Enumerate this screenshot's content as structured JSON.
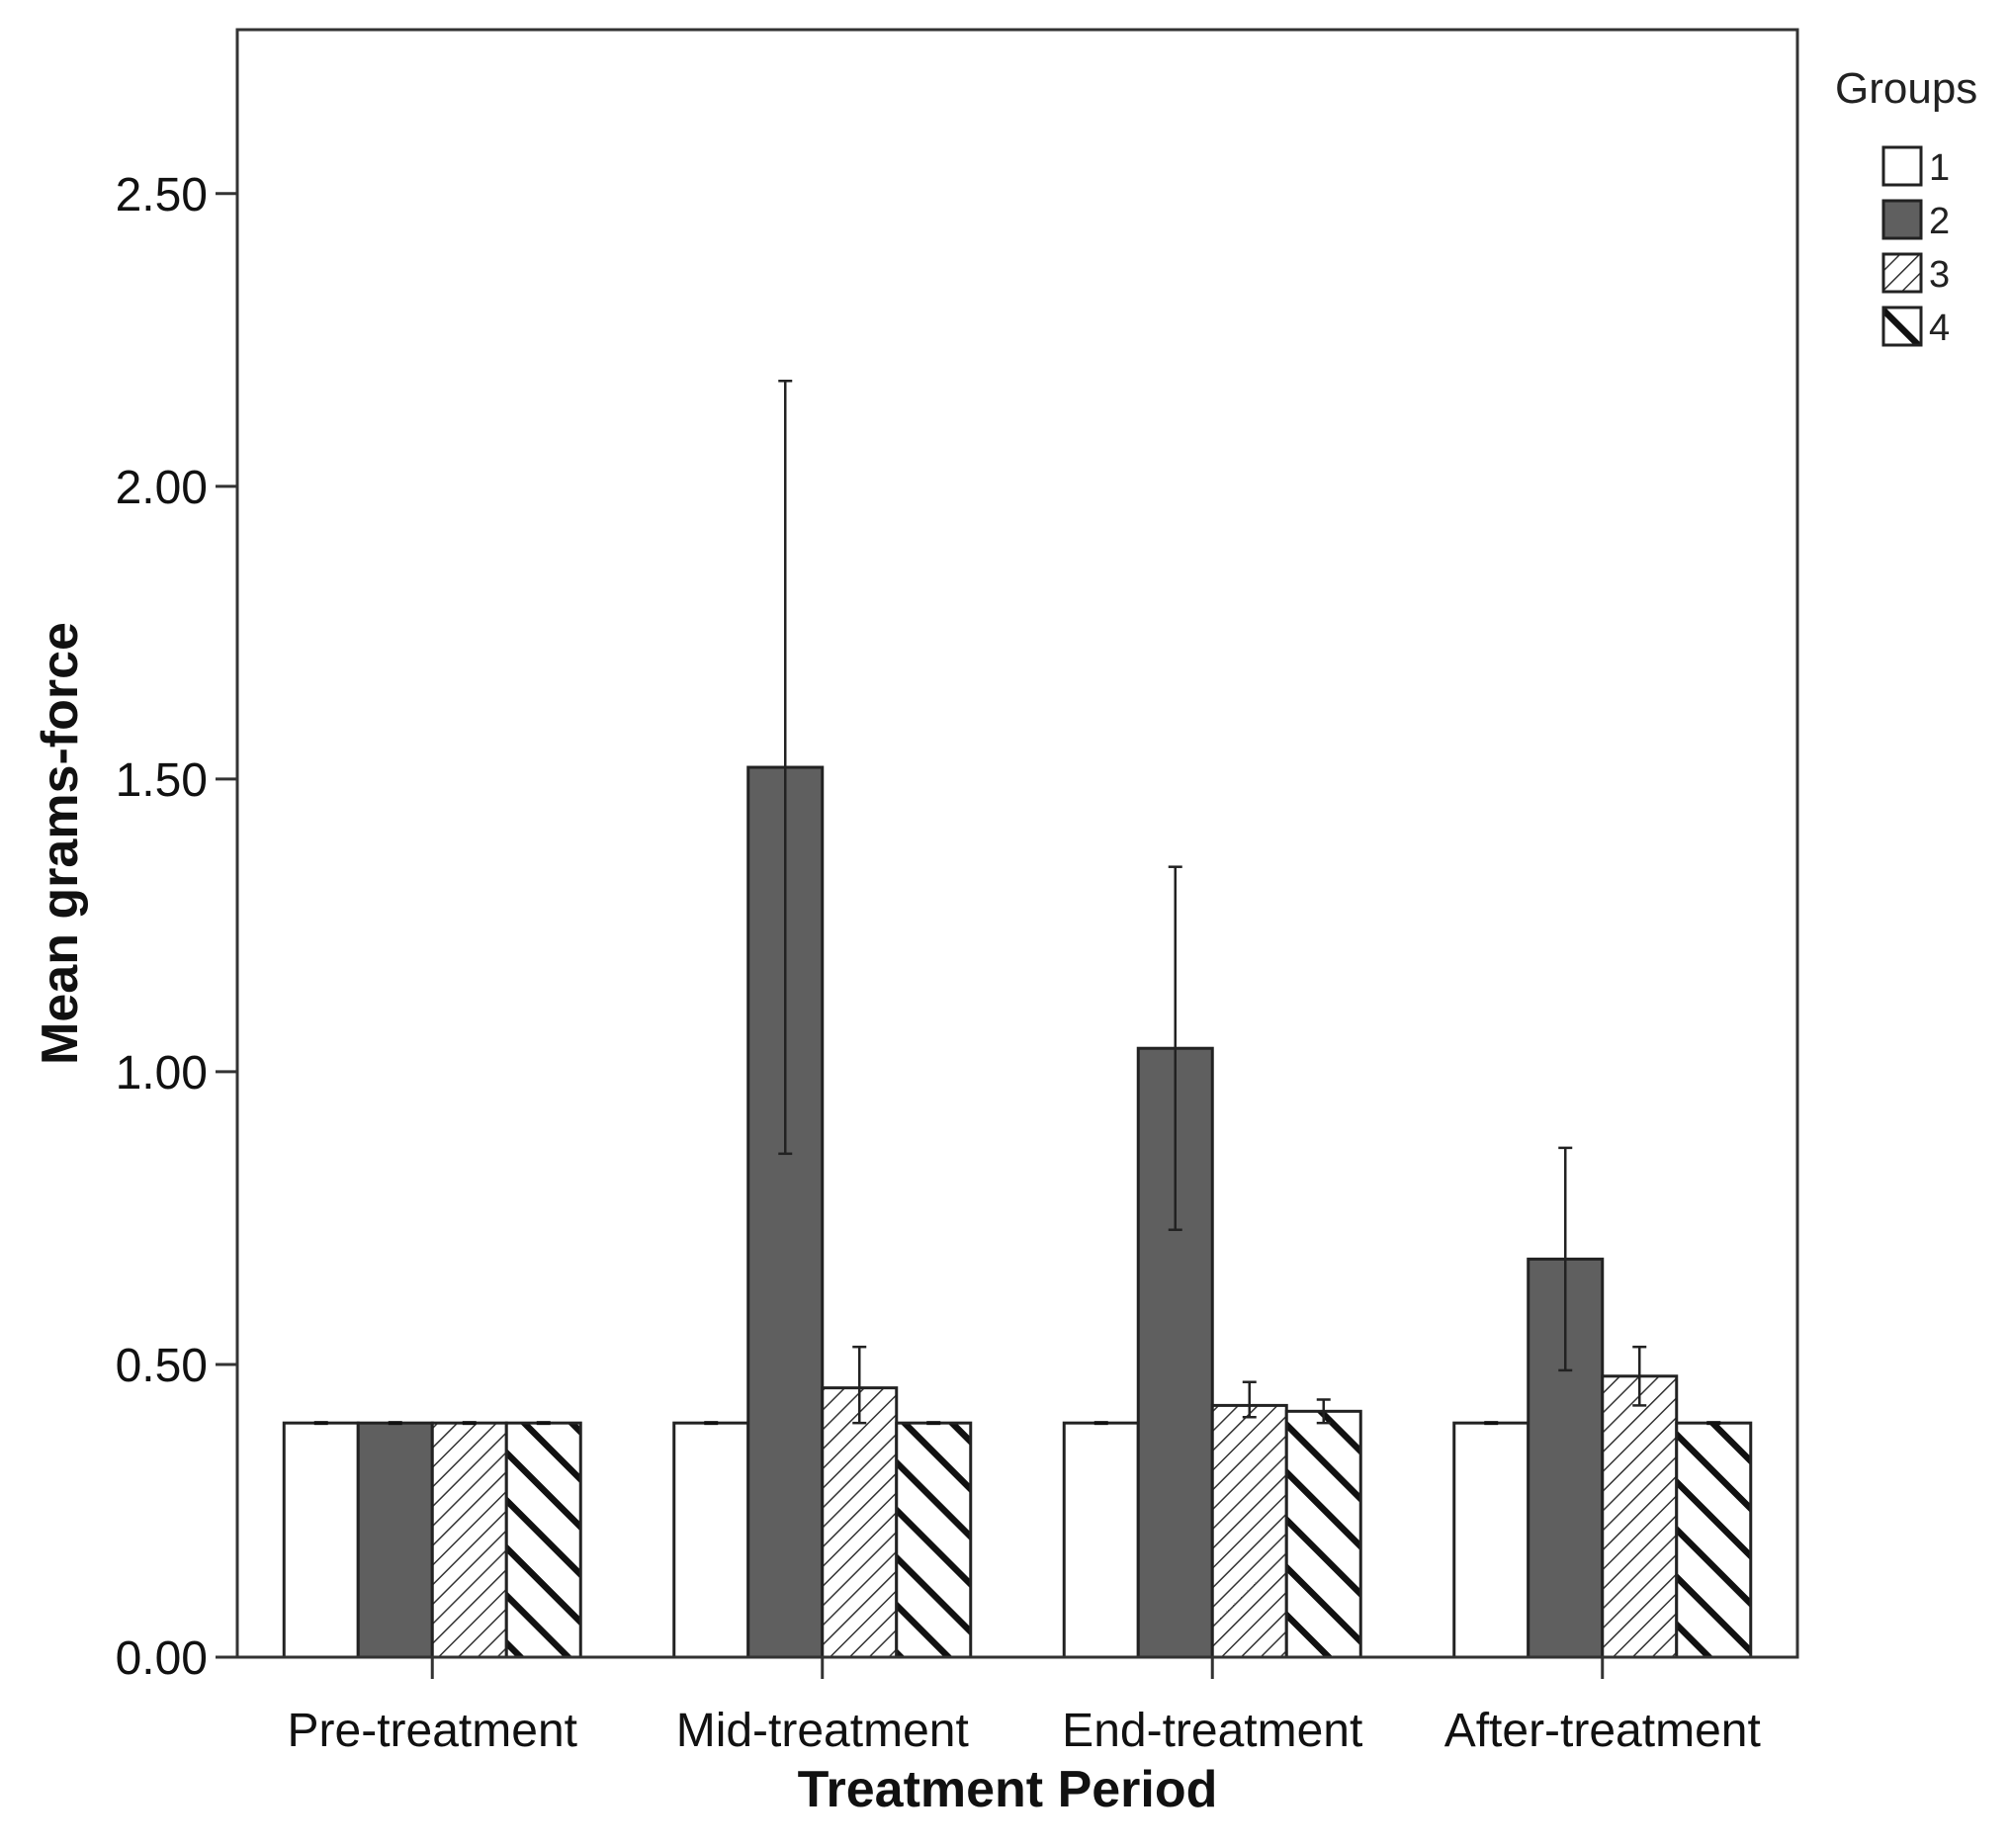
{
  "chart_data": {
    "type": "bar",
    "title": "",
    "xlabel": "Treatment Period",
    "ylabel": "Mean grams-force",
    "ylim": [
      0,
      2.78
    ],
    "yticks": [
      "0.00",
      "0.50",
      "1.00",
      "1.50",
      "2.00",
      "2.50"
    ],
    "ytick_values": [
      0,
      0.5,
      1.0,
      1.5,
      2.0,
      2.5
    ],
    "grid": false,
    "categories": [
      "Pre-treatment",
      "Mid-treatment",
      "End-treatment",
      "After-treatment"
    ],
    "series": [
      {
        "name": "1",
        "pattern": "white",
        "values": [
          0.4,
          0.4,
          0.4,
          0.4
        ],
        "err_low": [
          0.4,
          0.4,
          0.4,
          0.4
        ],
        "err_high": [
          0.4,
          0.4,
          0.4,
          0.4
        ]
      },
      {
        "name": "2",
        "pattern": "dark-gray",
        "values": [
          0.4,
          1.52,
          1.04,
          0.68
        ],
        "err_low": [
          0.4,
          0.86,
          0.73,
          0.49
        ],
        "err_high": [
          0.4,
          2.18,
          1.35,
          0.87
        ]
      },
      {
        "name": "3",
        "pattern": "thin-diagonal-hatch",
        "values": [
          0.4,
          0.46,
          0.43,
          0.48
        ],
        "err_low": [
          0.4,
          0.4,
          0.41,
          0.43
        ],
        "err_high": [
          0.4,
          0.53,
          0.47,
          0.53
        ]
      },
      {
        "name": "4",
        "pattern": "thick-diagonal-hatch",
        "values": [
          0.4,
          0.4,
          0.42,
          0.4
        ],
        "err_low": [
          0.4,
          0.4,
          0.4,
          0.4
        ],
        "err_high": [
          0.4,
          0.4,
          0.44,
          0.4
        ]
      }
    ],
    "legend": {
      "title": "Groups",
      "placement": "top-right, outside plot"
    },
    "colors": {
      "group2_fill": "#5f5f5f",
      "axis": "#333333",
      "bar_edge": "#222222"
    }
  }
}
